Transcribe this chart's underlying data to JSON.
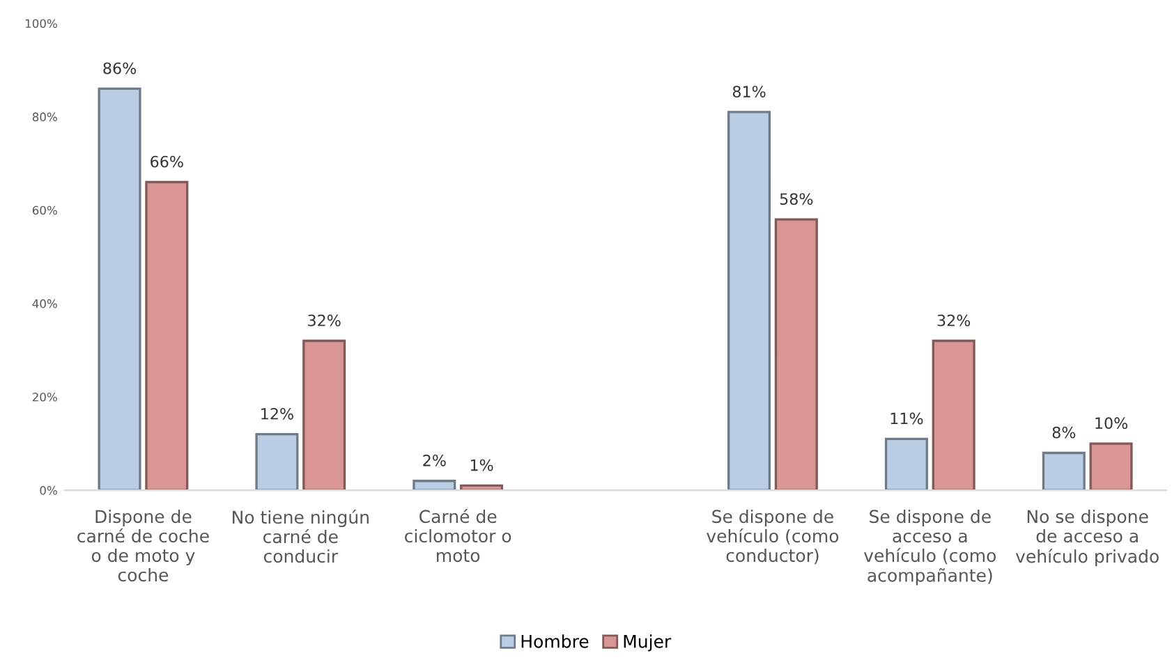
{
  "chart_data": {
    "type": "bar",
    "categories": [
      "Dispone de\ncarné de coche\no de moto y\ncoche",
      "No tiene ningún\ncarné de\nconducir",
      "Carné de\nciclomotor o\nmoto",
      null,
      "Se dispone de\nvehículo (como\nconductor)",
      "Se dispone de\nacceso a\nvehículo (como\nacompañante)",
      "No se dispone\nde acceso a\nvehículo privado"
    ],
    "series": [
      {
        "name": "Hombre",
        "color": "#b9cde5",
        "values": [
          86,
          12,
          2,
          null,
          81,
          11,
          8
        ],
        "value_labels": [
          "86%",
          "12%",
          "2%",
          null,
          "81%",
          "11%",
          "8%"
        ]
      },
      {
        "name": "Mujer",
        "color": "#d99694",
        "values": [
          66,
          32,
          1,
          null,
          58,
          32,
          10
        ],
        "value_labels": [
          "66%",
          "32%",
          "1%",
          null,
          "58%",
          "32%",
          "10%"
        ]
      }
    ],
    "ylim": [
      0,
      100
    ],
    "yticks": [
      {
        "value": 0,
        "label": "0%"
      },
      {
        "value": 20,
        "label": "20%"
      },
      {
        "value": 40,
        "label": "40%"
      },
      {
        "value": 60,
        "label": "60%"
      },
      {
        "value": 80,
        "label": "80%"
      },
      {
        "value": 100,
        "label": "100%"
      }
    ],
    "grid": false,
    "legend": "bottom"
  }
}
